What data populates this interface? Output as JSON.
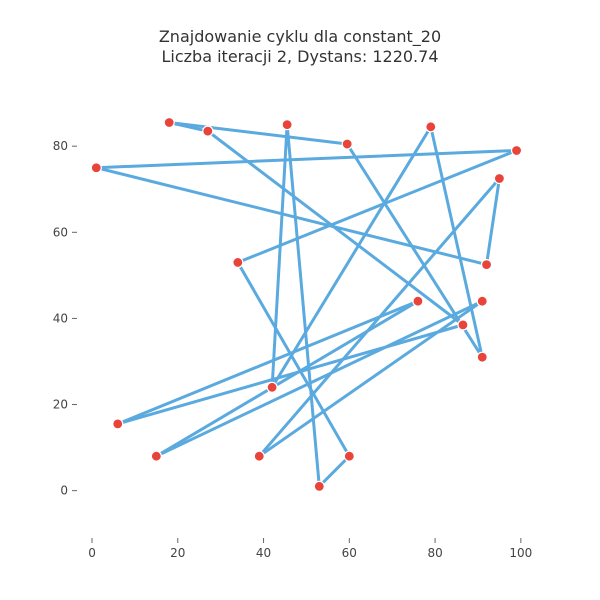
{
  "chart_data": {
    "type": "line",
    "title": "Znajdowanie cyklu dla constant_20",
    "subtitle": "Liczba iteracji 2, Dystans: 1220.74",
    "xlabel": "",
    "ylabel": "",
    "xlim": [
      -3.5,
      104
    ],
    "ylim": [
      -11,
      97
    ],
    "grid": false,
    "x_ticks": [
      0,
      20,
      40,
      60,
      80,
      100
    ],
    "y_ticks": [
      0,
      20,
      40,
      60,
      80
    ],
    "colors": {
      "line": "#5aaadf",
      "point": "#e8443a",
      "point_edge": "#ffffff"
    },
    "points": [
      {
        "x": 1,
        "y": 75
      },
      {
        "x": 92,
        "y": 52.5
      },
      {
        "x": 95,
        "y": 72.5
      },
      {
        "x": 39,
        "y": 8
      },
      {
        "x": 91,
        "y": 44
      },
      {
        "x": 15,
        "y": 8
      },
      {
        "x": 76,
        "y": 44
      },
      {
        "x": 6,
        "y": 15.5
      },
      {
        "x": 86.5,
        "y": 38.5
      },
      {
        "x": 27,
        "y": 83.5
      },
      {
        "x": 18,
        "y": 85.5
      },
      {
        "x": 59.5,
        "y": 80.5
      },
      {
        "x": 91,
        "y": 31
      },
      {
        "x": 79,
        "y": 84.5
      },
      {
        "x": 42,
        "y": 24
      },
      {
        "x": 45.5,
        "y": 85
      },
      {
        "x": 53,
        "y": 1
      },
      {
        "x": 60,
        "y": 8
      },
      {
        "x": 34,
        "y": 53
      },
      {
        "x": 99,
        "y": 79
      }
    ]
  }
}
